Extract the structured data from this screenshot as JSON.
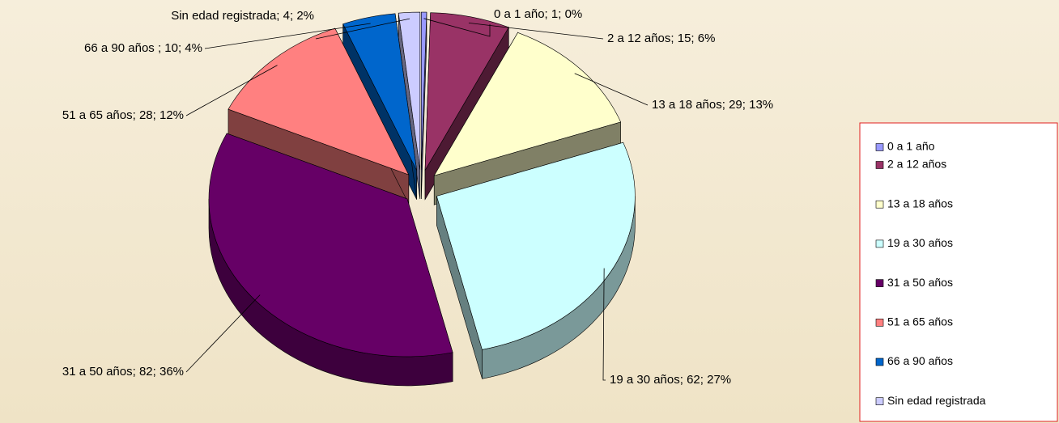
{
  "chart_data": {
    "type": "pie",
    "three_d": true,
    "exploded": true,
    "categories": [
      "0 a 1 año",
      "2 a 12 años",
      "13 a 18 años",
      "19 a 30 años",
      "31 a 50 años",
      "51 a 65 años",
      "66 a 90 años",
      "Sin edad registrada"
    ],
    "values": [
      1,
      15,
      29,
      62,
      82,
      28,
      10,
      4
    ],
    "value_labels": [
      "0 a 1 año; 1; 0%",
      "2 a 12 años; 15; 6%",
      "13 a 18 años; 29; 13%",
      "19 a 30 años; 62; 27%",
      "31 a 50 años; 82; 36%",
      "51 a 65 años; 28; 12%",
      "66 a 90 años ; 10; 4%",
      "Sin edad registrada; 4; 2%"
    ],
    "colors": [
      "#9999ff",
      "#993366",
      "#ffffcc",
      "#ccffff",
      "#660066",
      "#ff8080",
      "#0066cc",
      "#ccccff"
    ],
    "legend": "right"
  }
}
